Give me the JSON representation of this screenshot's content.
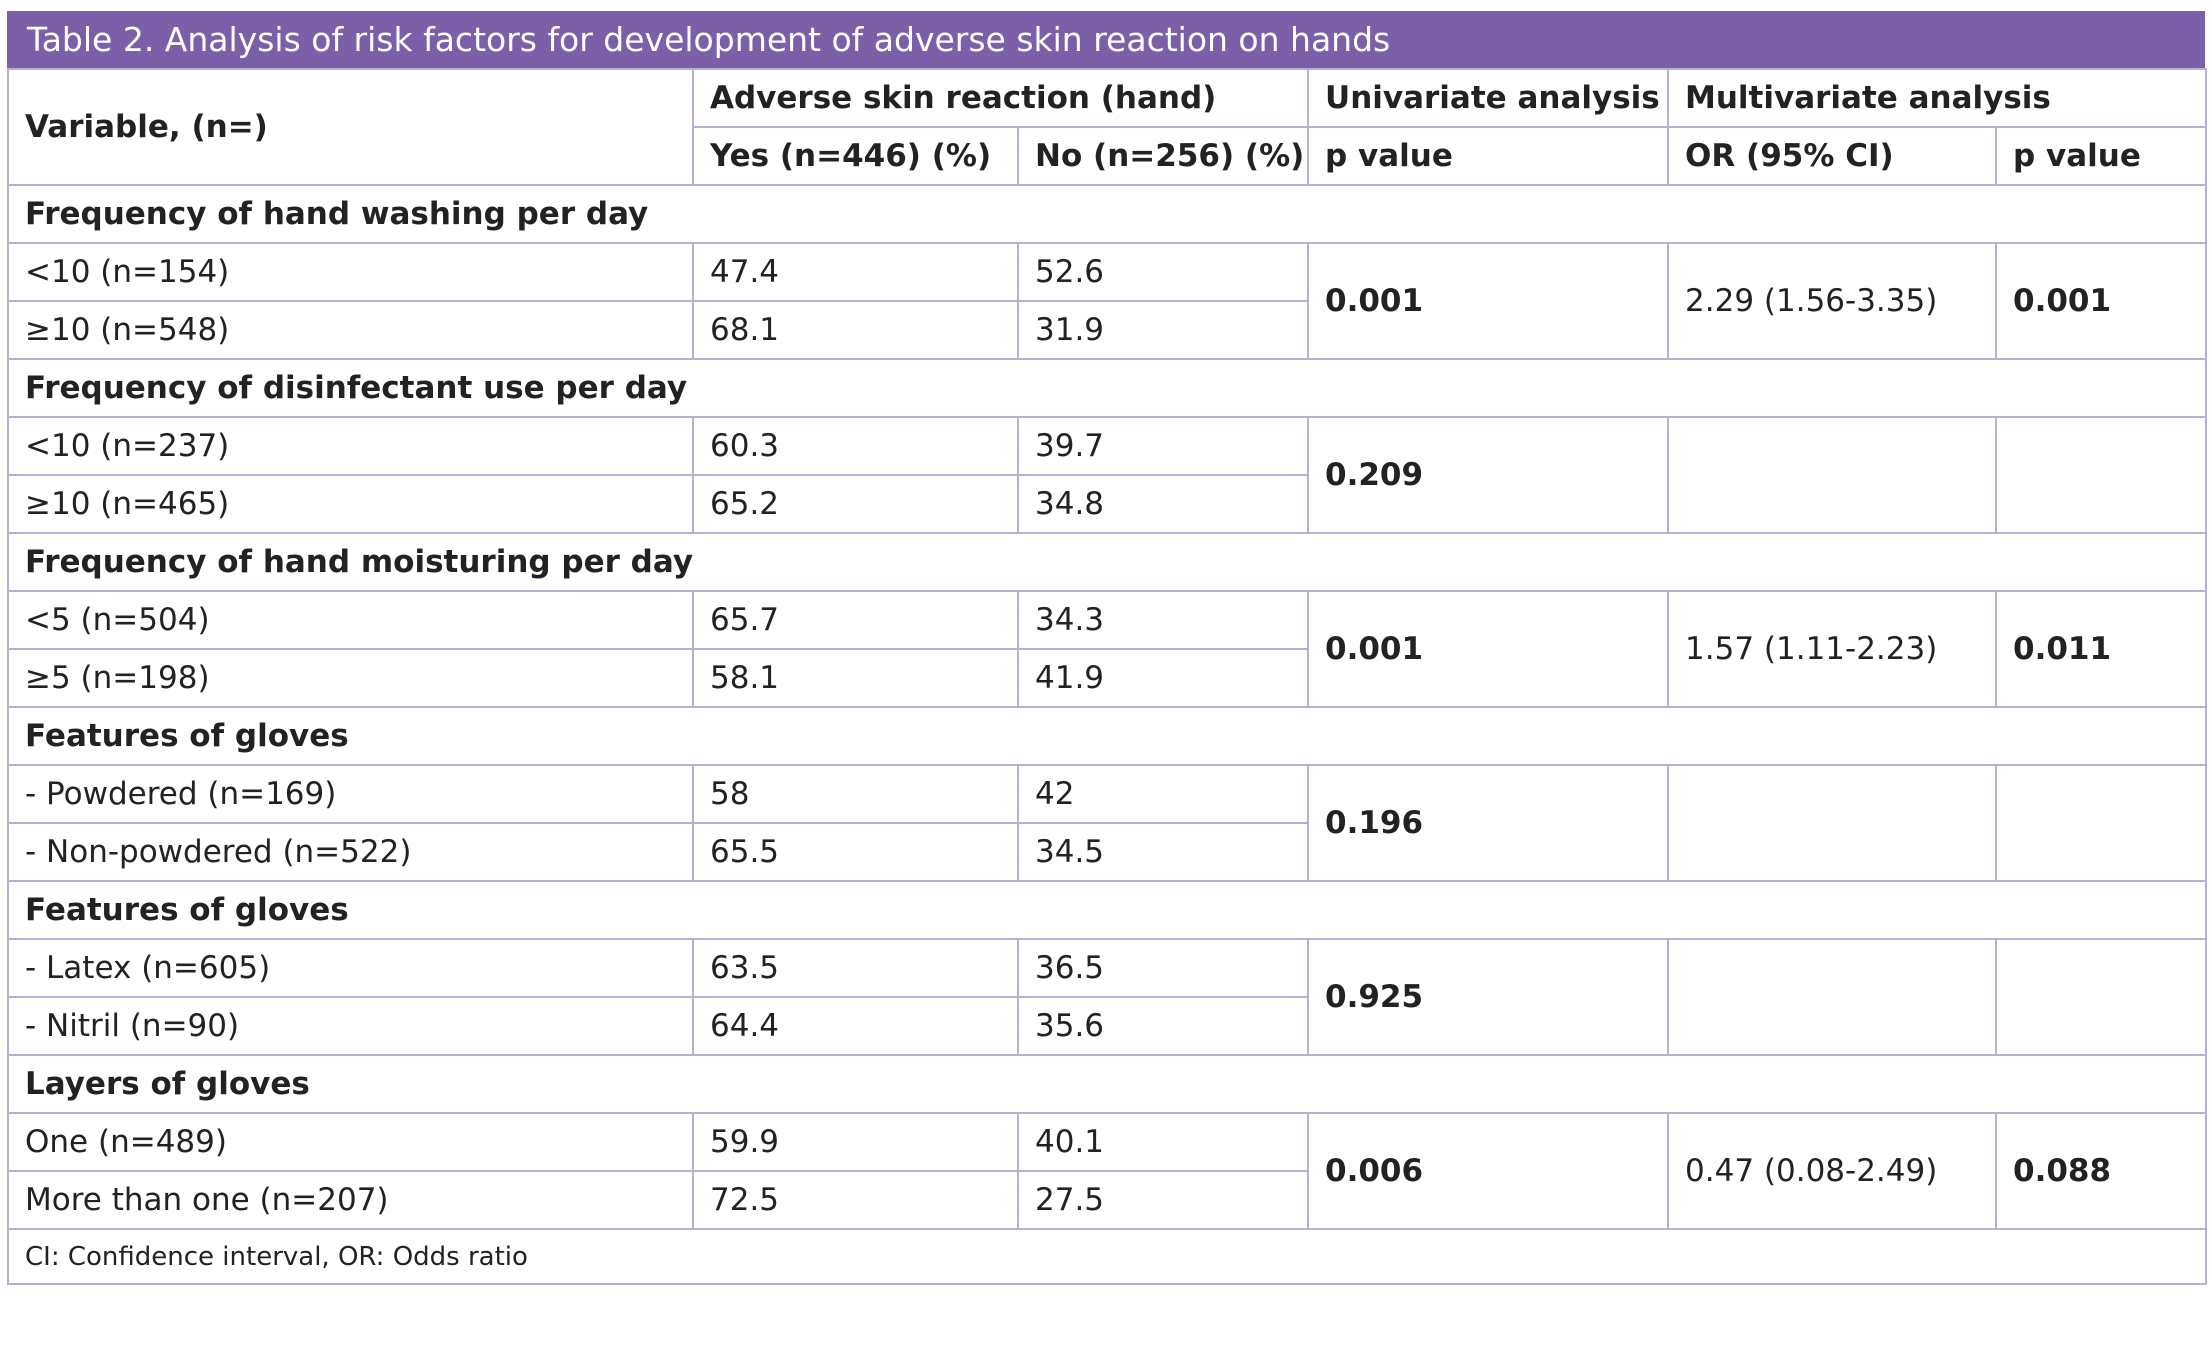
{
  "title": "Table 2. Analysis of risk factors for development of adverse skin reaction on hands",
  "header": {
    "variable": "Variable, (n=)",
    "adverse": "Adverse skin reaction (hand)",
    "yes": "Yes (n=446) (%)",
    "no": "No (n=256) (%)",
    "univariate": "Univariate analysis",
    "univariate_p": "p value",
    "multivariate": "Multivariate analysis",
    "or": "OR (95% CI)",
    "multivariate_p": "p value"
  },
  "sections": [
    {
      "title": "Frequency of hand washing per day",
      "rows": [
        {
          "label": "<10 (n=154)",
          "yes": "47.4",
          "no": "52.6"
        },
        {
          "label": "≥10 (n=548)",
          "yes": "68.1",
          "no": "31.9"
        }
      ],
      "univariate_p": "0.001",
      "or": "2.29 (1.56-3.35)",
      "multivariate_p": "0.001"
    },
    {
      "title": "Frequency of disinfectant use per day",
      "rows": [
        {
          "label": "<10 (n=237)",
          "yes": "60.3",
          "no": "39.7"
        },
        {
          "label": "≥10 (n=465)",
          "yes": "65.2",
          "no": "34.8"
        }
      ],
      "univariate_p": "0.209"
    },
    {
      "title": "Frequency of hand moisturing per day",
      "rows": [
        {
          "label": "<5 (n=504)",
          "yes": "65.7",
          "no": "34.3"
        },
        {
          "label": "≥5 (n=198)",
          "yes": "58.1",
          "no": "41.9"
        }
      ],
      "univariate_p": "0.001",
      "or": "1.57 (1.11-2.23)",
      "multivariate_p": "0.011"
    },
    {
      "title": "Features of gloves",
      "rows": [
        {
          "label": "- Powdered (n=169)",
          "yes": "58",
          "no": "42"
        },
        {
          "label": "- Non-powdered (n=522)",
          "yes": "65.5",
          "no": "34.5"
        }
      ],
      "univariate_p": "0.196"
    },
    {
      "title": "Features of gloves",
      "rows": [
        {
          "label": "- Latex (n=605)",
          "yes": "63.5",
          "no": "36.5"
        },
        {
          "label": "- Nitril (n=90)",
          "yes": "64.4",
          "no": "35.6"
        }
      ],
      "univariate_p": "0.925"
    },
    {
      "title": "Layers of gloves",
      "rows": [
        {
          "label": "One (n=489)",
          "yes": "59.9",
          "no": "40.1"
        },
        {
          "label": "More than one (n=207)",
          "yes": "72.5",
          "no": "27.5"
        }
      ],
      "univariate_p": "0.006",
      "or": "0.47 (0.08-2.49)",
      "multivariate_p": "0.088"
    }
  ],
  "footnote": "CI: Confidence interval, OR: Odds ratio"
}
